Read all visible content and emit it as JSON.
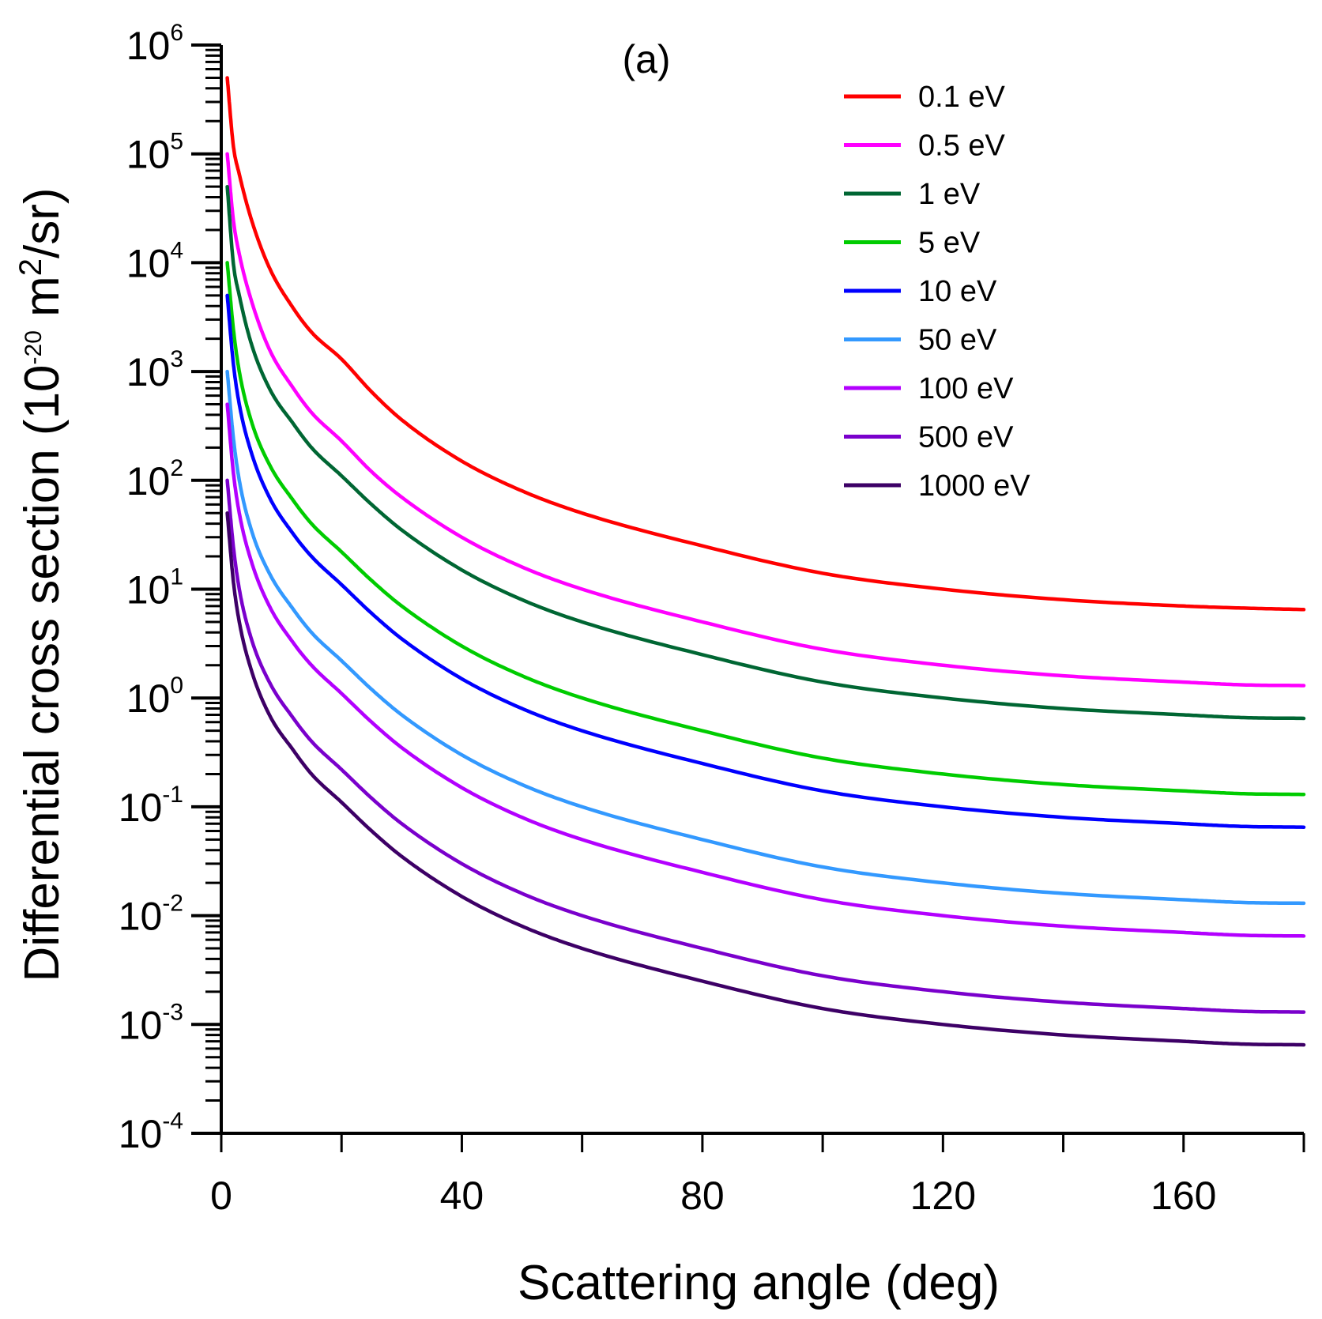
{
  "chart_data": {
    "type": "line",
    "panel_label": "(a)",
    "xlabel": "Scattering angle (deg)",
    "ylabel": {
      "prefix": "Differential cross section (10",
      "exp1": "-20",
      "mid": " m",
      "exp2": "2",
      "suffix": "/sr)"
    },
    "xlim": [
      0,
      180
    ],
    "ylim_log10": [
      -4,
      6
    ],
    "y_scale": "log",
    "x_ticks": [
      {
        "value": 0,
        "label": "0"
      },
      {
        "value": 40,
        "label": "40"
      },
      {
        "value": 80,
        "label": "80"
      },
      {
        "value": 120,
        "label": "120"
      },
      {
        "value": 160,
        "label": "160"
      }
    ],
    "y_ticks": [
      {
        "exp": 6,
        "base": "10",
        "sup": "6"
      },
      {
        "exp": 5,
        "base": "10",
        "sup": "5"
      },
      {
        "exp": 4,
        "base": "10",
        "sup": "4"
      },
      {
        "exp": 3,
        "base": "10",
        "sup": "3"
      },
      {
        "exp": 2,
        "base": "10",
        "sup": "2"
      },
      {
        "exp": 1,
        "base": "10",
        "sup": "1"
      },
      {
        "exp": 0,
        "base": "10",
        "sup": "0"
      },
      {
        "exp": -1,
        "base": "10",
        "sup": "-1"
      },
      {
        "exp": -2,
        "base": "10",
        "sup": "-2"
      },
      {
        "exp": -3,
        "base": "10",
        "sup": "-3"
      },
      {
        "exp": -4,
        "base": "10",
        "sup": "-4"
      }
    ],
    "legend_position": "top-right",
    "series": [
      {
        "name": "0.1 eV",
        "color": "#ff0000",
        "x": [
          1,
          2,
          3,
          5,
          8,
          12,
          15,
          20,
          25,
          30,
          40,
          50,
          60,
          80,
          100,
          120,
          140,
          160,
          170,
          180
        ],
        "y": [
          500000,
          120000,
          65000,
          25000,
          9000,
          3800,
          2300,
          1300,
          650,
          360,
          150,
          80,
          50,
          25,
          14,
          10,
          8,
          7,
          6.7,
          6.5
        ]
      },
      {
        "name": "0.5 eV",
        "color": "#ff00ff",
        "x": [
          1,
          2,
          3,
          5,
          8,
          12,
          15,
          20,
          25,
          30,
          40,
          50,
          60,
          80,
          100,
          120,
          140,
          160,
          170,
          180
        ],
        "y": [
          100000,
          25000,
          12000,
          4500,
          1600,
          700,
          420,
          230,
          120,
          70,
          30,
          16,
          10,
          5,
          2.8,
          2,
          1.6,
          1.4,
          1.32,
          1.3
        ]
      },
      {
        "name": "1 eV",
        "color": "#006633",
        "x": [
          1,
          2,
          3,
          5,
          8,
          12,
          15,
          20,
          25,
          30,
          40,
          50,
          60,
          80,
          100,
          120,
          140,
          160,
          170,
          180
        ],
        "y": [
          50000,
          10000,
          5000,
          1800,
          700,
          330,
          200,
          110,
          60,
          35,
          15,
          8,
          5,
          2.5,
          1.4,
          1,
          0.8,
          0.7,
          0.66,
          0.65
        ]
      },
      {
        "name": "5 eV",
        "color": "#00cc00",
        "x": [
          1,
          2,
          3,
          5,
          8,
          12,
          15,
          20,
          25,
          30,
          40,
          50,
          60,
          80,
          100,
          120,
          140,
          160,
          170,
          180
        ],
        "y": [
          10000,
          2500,
          1000,
          350,
          140,
          65,
          40,
          22,
          12,
          7,
          3,
          1.6,
          1,
          0.5,
          0.28,
          0.2,
          0.16,
          0.14,
          0.132,
          0.13
        ]
      },
      {
        "name": "10 eV",
        "color": "#0000ff",
        "x": [
          1,
          2,
          3,
          5,
          8,
          12,
          15,
          20,
          25,
          30,
          40,
          50,
          60,
          80,
          100,
          120,
          140,
          160,
          170,
          180
        ],
        "y": [
          5000,
          1200,
          500,
          180,
          70,
          32,
          20,
          11,
          6,
          3.5,
          1.5,
          0.8,
          0.5,
          0.25,
          0.14,
          0.1,
          0.08,
          0.07,
          0.066,
          0.065
        ]
      },
      {
        "name": "50 eV",
        "color": "#3399ff",
        "x": [
          1,
          2,
          3,
          5,
          8,
          12,
          15,
          20,
          25,
          30,
          40,
          50,
          60,
          80,
          100,
          120,
          140,
          160,
          170,
          180
        ],
        "y": [
          1000,
          250,
          100,
          35,
          14,
          6.5,
          4,
          2.2,
          1.2,
          0.7,
          0.3,
          0.16,
          0.1,
          0.05,
          0.028,
          0.02,
          0.016,
          0.014,
          0.0132,
          0.013
        ]
      },
      {
        "name": "100 eV",
        "color": "#b300ff",
        "x": [
          1,
          2,
          3,
          5,
          8,
          12,
          15,
          20,
          25,
          30,
          40,
          50,
          60,
          80,
          100,
          120,
          140,
          160,
          170,
          180
        ],
        "y": [
          500,
          120,
          50,
          18,
          7,
          3.2,
          2,
          1.1,
          0.6,
          0.35,
          0.15,
          0.08,
          0.05,
          0.025,
          0.014,
          0.01,
          0.008,
          0.007,
          0.0066,
          0.0065
        ]
      },
      {
        "name": "500 eV",
        "color": "#7a00cc",
        "x": [
          1,
          2,
          3,
          5,
          8,
          12,
          15,
          20,
          25,
          30,
          40,
          50,
          60,
          80,
          100,
          120,
          140,
          160,
          170,
          180
        ],
        "y": [
          100,
          25,
          10,
          3.5,
          1.4,
          0.65,
          0.4,
          0.22,
          0.12,
          0.07,
          0.03,
          0.016,
          0.01,
          0.005,
          0.0028,
          0.002,
          0.0016,
          0.0014,
          0.00132,
          0.0013
        ]
      },
      {
        "name": "1000 eV",
        "color": "#3d0066",
        "x": [
          1,
          2,
          3,
          5,
          8,
          12,
          15,
          20,
          25,
          30,
          40,
          50,
          60,
          80,
          100,
          120,
          140,
          160,
          170,
          180
        ],
        "y": [
          50,
          12,
          5,
          1.8,
          0.7,
          0.33,
          0.2,
          0.11,
          0.06,
          0.035,
          0.015,
          0.008,
          0.005,
          0.0025,
          0.0014,
          0.001,
          0.0008,
          0.0007,
          0.00066,
          0.00065
        ]
      }
    ]
  }
}
